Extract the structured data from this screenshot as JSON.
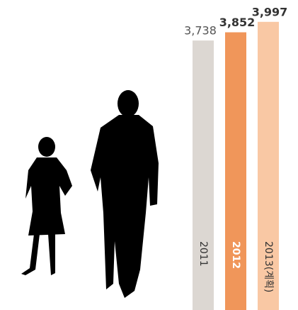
{
  "chart_data": {
    "type": "bar",
    "categories": [
      "2011",
      "2012",
      "2013(계획)"
    ],
    "values": [
      3738,
      3852,
      3997
    ],
    "value_labels": [
      "3,738",
      "3,852",
      "3,997"
    ],
    "colors": [
      "#dcd7d2",
      "#f0965a",
      "#f9c8a4"
    ],
    "ylim": [
      0,
      4300
    ]
  }
}
